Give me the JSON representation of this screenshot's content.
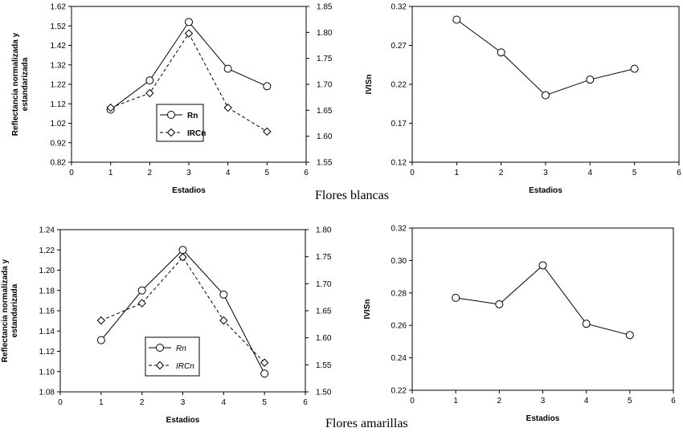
{
  "captions": {
    "white": "Flores blancas",
    "yellow": "Flores amarillas"
  },
  "chart_data": [
    {
      "type": "line",
      "id": "white-reflectance",
      "xlabel": "Estadios",
      "ylabel_line1": "Reflectancia normalizada y",
      "ylabel_line2": "estandarizada",
      "xlim": [
        0,
        6
      ],
      "xticks": [
        "0",
        "1",
        "2",
        "3",
        "4",
        "5",
        "6"
      ],
      "ylim": [
        0.82,
        1.62
      ],
      "yticks": [
        "0.82",
        "0.92",
        "1.02",
        "1.12",
        "1.22",
        "1.32",
        "1.42",
        "1.52",
        "1.62"
      ],
      "y2lim": [
        1.55,
        1.85
      ],
      "y2ticks": [
        "1.55",
        "1.60",
        "1.65",
        "1.70",
        "1.75",
        "1.80",
        "1.85"
      ],
      "series": [
        {
          "name": "Rn",
          "axis": "left",
          "marker": "circle",
          "dash": false,
          "x": [
            1,
            2,
            3,
            4,
            5
          ],
          "y": [
            1.09,
            1.24,
            1.54,
            1.3,
            1.21
          ]
        },
        {
          "name": "IRCn",
          "axis": "right",
          "marker": "diamond",
          "dash": true,
          "x": [
            1,
            2,
            3,
            4,
            5
          ],
          "y": [
            1.655,
            1.683,
            1.798,
            1.655,
            1.609
          ]
        }
      ]
    },
    {
      "type": "line",
      "id": "white-ivisn",
      "xlabel": "Estadios",
      "ylabel": "IVISn",
      "xlim": [
        0,
        6
      ],
      "xticks": [
        "0",
        "1",
        "2",
        "3",
        "4",
        "5",
        "6"
      ],
      "ylim": [
        0.12,
        0.32
      ],
      "yticks": [
        "0.12",
        "0.17",
        "0.22",
        "0.27",
        "0.32"
      ],
      "series": [
        {
          "name": "IVISn",
          "marker": "circle",
          "dash": false,
          "x": [
            1,
            2,
            3,
            4,
            5
          ],
          "y": [
            0.303,
            0.261,
            0.206,
            0.226,
            0.24
          ]
        }
      ]
    },
    {
      "type": "line",
      "id": "yellow-reflectance",
      "xlabel": "Estadios",
      "ylabel_line1": "Reflectancia normalizada y",
      "ylabel_line2": "estandarizada",
      "xlim": [
        0,
        6
      ],
      "xticks": [
        "0",
        "1",
        "2",
        "3",
        "4",
        "5",
        "6"
      ],
      "ylim": [
        1.08,
        1.24
      ],
      "yticks": [
        "1.08",
        "1.10",
        "1.12",
        "1.14",
        "1.16",
        "1.18",
        "1.20",
        "1.22",
        "1.24"
      ],
      "y2lim": [
        1.5,
        1.8
      ],
      "y2ticks": [
        "1.50",
        "1.55",
        "1.60",
        "1.65",
        "1.70",
        "1.75",
        "1.80"
      ],
      "series": [
        {
          "name": "Rn",
          "axis": "left",
          "marker": "circle",
          "dash": false,
          "x": [
            1,
            2,
            3,
            4,
            5
          ],
          "y": [
            1.131,
            1.18,
            1.22,
            1.176,
            1.098
          ]
        },
        {
          "name": "IRCn",
          "axis": "right",
          "marker": "diamond",
          "dash": true,
          "x": [
            1,
            2,
            3,
            4,
            5
          ],
          "y": [
            1.632,
            1.664,
            1.749,
            1.632,
            1.554
          ]
        }
      ]
    },
    {
      "type": "line",
      "id": "yellow-ivisn",
      "xlabel": "Estadios",
      "ylabel": "IVISn",
      "xlim": [
        0,
        6
      ],
      "xticks": [
        "0",
        "1",
        "2",
        "3",
        "4",
        "5",
        "6"
      ],
      "ylim": [
        0.22,
        0.32
      ],
      "yticks": [
        "0.22",
        "0.24",
        "0.26",
        "0.28",
        "0.30",
        "0.32"
      ],
      "series": [
        {
          "name": "IVISn",
          "marker": "circle",
          "dash": false,
          "x": [
            1,
            2,
            3,
            4,
            5
          ],
          "y": [
            0.277,
            0.273,
            0.297,
            0.261,
            0.254
          ]
        }
      ]
    }
  ]
}
